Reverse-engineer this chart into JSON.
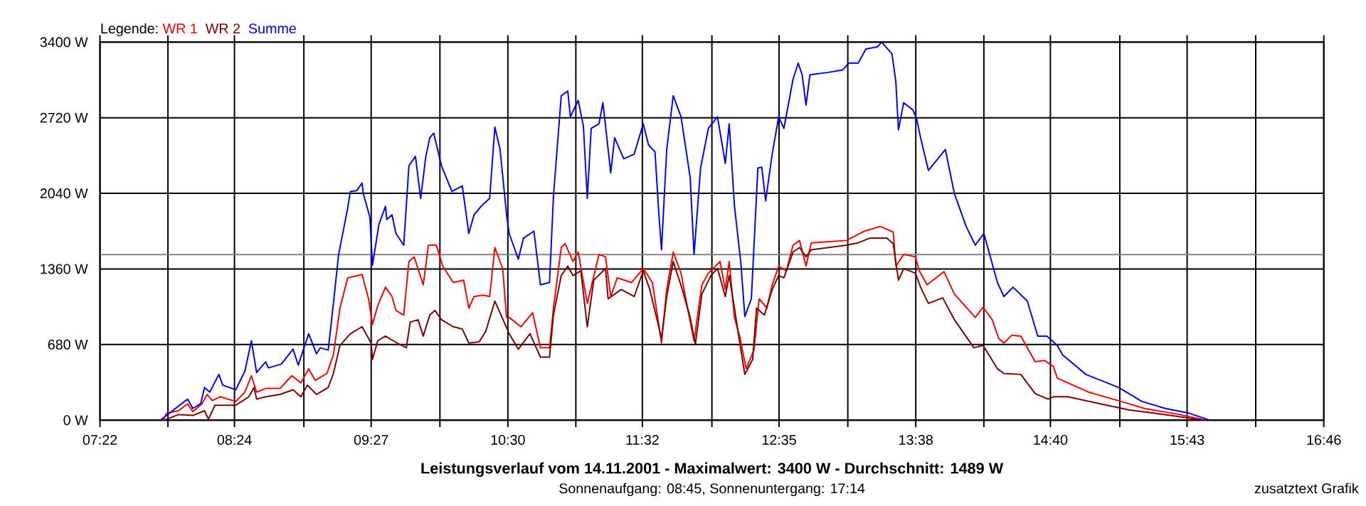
{
  "chart_data": {
    "type": "line",
    "title": "Leistungsverlauf vom 14.11.2001 - Maximalwert: 3400 W - Durchschnitt: 1489 W",
    "subtitle": "Sonnenaufgang: 08:45, Sonnenuntergang: 17:14",
    "annotations": [
      "zusatztext Grafik"
    ],
    "legend_title": "Legende:",
    "legend": "top left",
    "grid": true,
    "xlim": [
      7.367,
      16.767
    ],
    "xticks": [
      {
        "value": 7.367,
        "label": "07:22"
      },
      {
        "value": 7.889,
        "label": null
      },
      {
        "value": 8.4,
        "label": "08:24"
      },
      {
        "value": 8.933,
        "label": null
      },
      {
        "value": 9.45,
        "label": "09:27"
      },
      {
        "value": 9.978,
        "label": null
      },
      {
        "value": 10.5,
        "label": "10:30"
      },
      {
        "value": 11.022,
        "label": null
      },
      {
        "value": 11.533,
        "label": "11:32"
      },
      {
        "value": 12.067,
        "label": null
      },
      {
        "value": 12.583,
        "label": "12:35"
      },
      {
        "value": 13.111,
        "label": null
      },
      {
        "value": 13.633,
        "label": "13:38"
      },
      {
        "value": 14.156,
        "label": null
      },
      {
        "value": 14.667,
        "label": "14:40"
      },
      {
        "value": 15.2,
        "label": null
      },
      {
        "value": 15.717,
        "label": "15:43"
      },
      {
        "value": 16.244,
        "label": null
      },
      {
        "value": 16.767,
        "label": "16:46"
      }
    ],
    "ylim": [
      0,
      3400
    ],
    "yticks": [
      {
        "value": 0,
        "label": "0 W"
      },
      {
        "value": 680,
        "label": "680 W"
      },
      {
        "value": 1360,
        "label": "1360 W"
      },
      {
        "value": 2040,
        "label": "2040 W"
      },
      {
        "value": 2720,
        "label": "2720 W"
      },
      {
        "value": 3400,
        "label": "3400 W"
      }
    ],
    "ref_lines": [
      {
        "axis": "y",
        "value": 1489,
        "color": "#808080"
      }
    ],
    "series": [
      {
        "name": "WR 1",
        "color": "#ff0000",
        "x": [
          7.85,
          7.88,
          7.97,
          8.04,
          8.08,
          8.15,
          8.19,
          8.23,
          8.29,
          8.41,
          8.48,
          8.53,
          8.57,
          8.64,
          8.75,
          8.84,
          8.91,
          8.97,
          9.02,
          9.11,
          9.16,
          9.21,
          9.27,
          9.38,
          9.43,
          9.46,
          9.5,
          9.56,
          9.61,
          9.64,
          9.7,
          9.74,
          9.78,
          9.85,
          9.89,
          9.95,
          10.0,
          10.08,
          10.16,
          10.2,
          10.24,
          10.31,
          10.36,
          10.4,
          10.46,
          10.49,
          10.51,
          10.6,
          10.69,
          10.75,
          10.82,
          10.85,
          10.91,
          10.94,
          11.0,
          11.04,
          11.11,
          11.2,
          11.25,
          11.29,
          11.34,
          11.45,
          11.54,
          11.61,
          11.68,
          11.72,
          11.77,
          11.83,
          11.88,
          11.93,
          11.99,
          12.04,
          12.13,
          12.17,
          12.2,
          12.24,
          12.28,
          12.33,
          12.39,
          12.43,
          12.49,
          12.53,
          12.58,
          12.64,
          12.69,
          12.74,
          12.79,
          12.83,
          13.1,
          13.24,
          13.36,
          13.46,
          13.48,
          13.54,
          13.63,
          13.66,
          13.72,
          13.85,
          13.93,
          14.09,
          14.15,
          14.22,
          14.27,
          14.31,
          14.37,
          14.44,
          14.55,
          14.62,
          14.69,
          14.72,
          14.96,
          15.21,
          15.39,
          15.66,
          15.86
        ],
        "values": [
          0,
          63,
          84,
          147,
          76,
          147,
          231,
          176,
          210,
          168,
          252,
          399,
          252,
          285,
          285,
          399,
          336,
          462,
          357,
          420,
          588,
          1008,
          1280,
          1310,
          1091,
          861,
          1029,
          1196,
          1112,
          987,
          945,
          1427,
          1469,
          1217,
          1574,
          1574,
          1385,
          1238,
          1259,
          1008,
          1112,
          1125,
          1112,
          1553,
          1364,
          924,
          924,
          840,
          966,
          651,
          651,
          1008,
          1553,
          1587,
          1427,
          1511,
          1050,
          1490,
          1469,
          1112,
          1280,
          1238,
          1364,
          1238,
          693,
          1175,
          1511,
          1322,
          1008,
          714,
          1217,
          1322,
          1427,
          1175,
          1427,
          924,
          756,
          462,
          630,
          1091,
          1008,
          1217,
          1385,
          1343,
          1574,
          1616,
          1385,
          1595,
          1616,
          1700,
          1742,
          1692,
          1385,
          1490,
          1469,
          1343,
          1217,
          1335,
          1133,
          924,
          1016,
          903,
          735,
          693,
          764,
          756,
          525,
          537,
          483,
          378,
          252,
          168,
          105,
          50,
          0
        ]
      },
      {
        "name": "WR 2",
        "color": "#800000",
        "x": [
          7.86,
          7.97,
          8.08,
          8.17,
          8.2,
          8.25,
          8.41,
          8.51,
          8.55,
          8.57,
          8.64,
          8.75,
          8.85,
          8.91,
          8.96,
          9.03,
          9.12,
          9.16,
          9.21,
          9.29,
          9.38,
          9.45,
          9.46,
          9.5,
          9.56,
          9.65,
          9.72,
          9.75,
          9.81,
          9.85,
          9.9,
          9.94,
          9.99,
          10.08,
          10.15,
          10.2,
          10.28,
          10.33,
          10.4,
          10.44,
          10.51,
          10.58,
          10.67,
          10.75,
          10.82,
          10.85,
          10.91,
          10.96,
          11.0,
          11.06,
          11.11,
          11.16,
          11.25,
          11.27,
          11.37,
          11.47,
          11.54,
          11.59,
          11.68,
          11.72,
          11.77,
          11.84,
          11.9,
          11.94,
          11.99,
          12.06,
          12.11,
          12.17,
          12.2,
          12.24,
          12.29,
          12.32,
          12.38,
          12.41,
          12.47,
          12.53,
          12.58,
          12.62,
          12.69,
          12.74,
          12.79,
          12.83,
          13.1,
          13.19,
          13.28,
          13.41,
          13.46,
          13.5,
          13.54,
          13.63,
          13.67,
          13.73,
          13.84,
          13.93,
          14.08,
          14.15,
          14.26,
          14.31,
          14.44,
          14.55,
          14.65,
          14.69,
          14.8,
          15.05,
          15.27,
          15.59,
          15.84
        ],
        "values": [
          0,
          50,
          42,
          84,
          8,
          134,
          134,
          210,
          294,
          189,
          210,
          231,
          273,
          210,
          315,
          231,
          294,
          420,
          672,
          777,
          840,
          693,
          546,
          714,
          756,
          693,
          651,
          882,
          903,
          756,
          945,
          987,
          903,
          840,
          819,
          693,
          705,
          798,
          1070,
          966,
          777,
          638,
          777,
          567,
          567,
          945,
          1301,
          1385,
          1301,
          1343,
          840,
          1259,
          1364,
          1091,
          1175,
          1112,
          1343,
          1175,
          735,
          1112,
          1427,
          1175,
          924,
          680,
          1133,
          1301,
          1364,
          1112,
          1301,
          1008,
          630,
          411,
          546,
          1008,
          945,
          1175,
          1301,
          1280,
          1511,
          1553,
          1469,
          1532,
          1574,
          1595,
          1637,
          1637,
          1587,
          1259,
          1364,
          1322,
          1196,
          1050,
          1100,
          903,
          651,
          672,
          462,
          420,
          411,
          239,
          189,
          210,
          210,
          147,
          92,
          42,
          0
        ]
      },
      {
        "name": "Summe",
        "color": "#0000ff",
        "x": [
          7.83,
          8.04,
          8.08,
          8.14,
          8.17,
          8.21,
          8.28,
          8.31,
          8.41,
          8.48,
          8.53,
          8.57,
          8.64,
          8.66,
          8.76,
          8.85,
          8.89,
          8.97,
          9.03,
          9.06,
          9.12,
          9.16,
          9.2,
          9.27,
          9.29,
          9.34,
          9.38,
          9.39,
          9.44,
          9.46,
          9.51,
          9.56,
          9.57,
          9.61,
          9.64,
          9.7,
          9.74,
          9.79,
          9.83,
          9.87,
          9.9,
          9.93,
          9.99,
          10.07,
          10.15,
          10.2,
          10.24,
          10.3,
          10.36,
          10.4,
          10.44,
          10.49,
          10.51,
          10.58,
          10.62,
          10.7,
          10.75,
          10.82,
          10.85,
          10.91,
          10.96,
          10.98,
          11.04,
          11.08,
          11.11,
          11.14,
          11.2,
          11.23,
          11.29,
          11.32,
          11.39,
          11.47,
          11.54,
          11.58,
          11.63,
          11.66,
          11.68,
          11.72,
          11.77,
          11.83,
          11.9,
          11.93,
          11.98,
          12.04,
          12.11,
          12.17,
          12.2,
          12.24,
          12.29,
          12.32,
          12.37,
          12.42,
          12.45,
          12.48,
          12.53,
          12.58,
          12.62,
          12.69,
          12.73,
          12.76,
          12.79,
          12.82,
          12.96,
          13.07,
          13.12,
          13.19,
          13.25,
          13.34,
          13.37,
          13.45,
          13.48,
          13.5,
          13.54,
          13.61,
          13.64,
          13.67,
          13.73,
          13.86,
          13.93,
          14.02,
          14.09,
          14.156,
          14.26,
          14.31,
          14.38,
          14.49,
          14.57,
          14.64,
          14.72,
          14.76,
          14.94,
          15.19,
          15.37,
          15.55,
          15.73,
          15.89
        ],
        "values": [
          0,
          189,
          105,
          147,
          294,
          252,
          411,
          315,
          273,
          441,
          714,
          428,
          525,
          470,
          504,
          638,
          495,
          777,
          596,
          651,
          630,
          1050,
          1490,
          1910,
          2057,
          2065,
          2133,
          2036,
          1826,
          1394,
          1763,
          1923,
          1805,
          1847,
          1679,
          1574,
          2288,
          2372,
          1994,
          2372,
          2540,
          2582,
          2288,
          2057,
          2107,
          1679,
          1847,
          1931,
          1994,
          2636,
          2435,
          1847,
          1679,
          1448,
          1637,
          1700,
          1217,
          1238,
          2015,
          2918,
          2960,
          2729,
          2876,
          2645,
          1994,
          2624,
          2666,
          2855,
          2225,
          2540,
          2351,
          2393,
          2666,
          2477,
          2414,
          1847,
          1532,
          2435,
          2918,
          2729,
          2183,
          1490,
          2267,
          2624,
          2729,
          2309,
          2666,
          1931,
          1406,
          932,
          1091,
          2267,
          2275,
          1973,
          2393,
          2729,
          2624,
          3065,
          3212,
          3107,
          2834,
          3107,
          3128,
          3149,
          3212,
          3212,
          3338,
          3359,
          3400,
          3296,
          3044,
          2611,
          2855,
          2792,
          2708,
          2540,
          2246,
          2435,
          2036,
          1742,
          1574,
          1679,
          1238,
          1112,
          1196,
          1070,
          756,
          756,
          672,
          588,
          411,
          294,
          168,
          105,
          63,
          0
        ]
      }
    ]
  }
}
